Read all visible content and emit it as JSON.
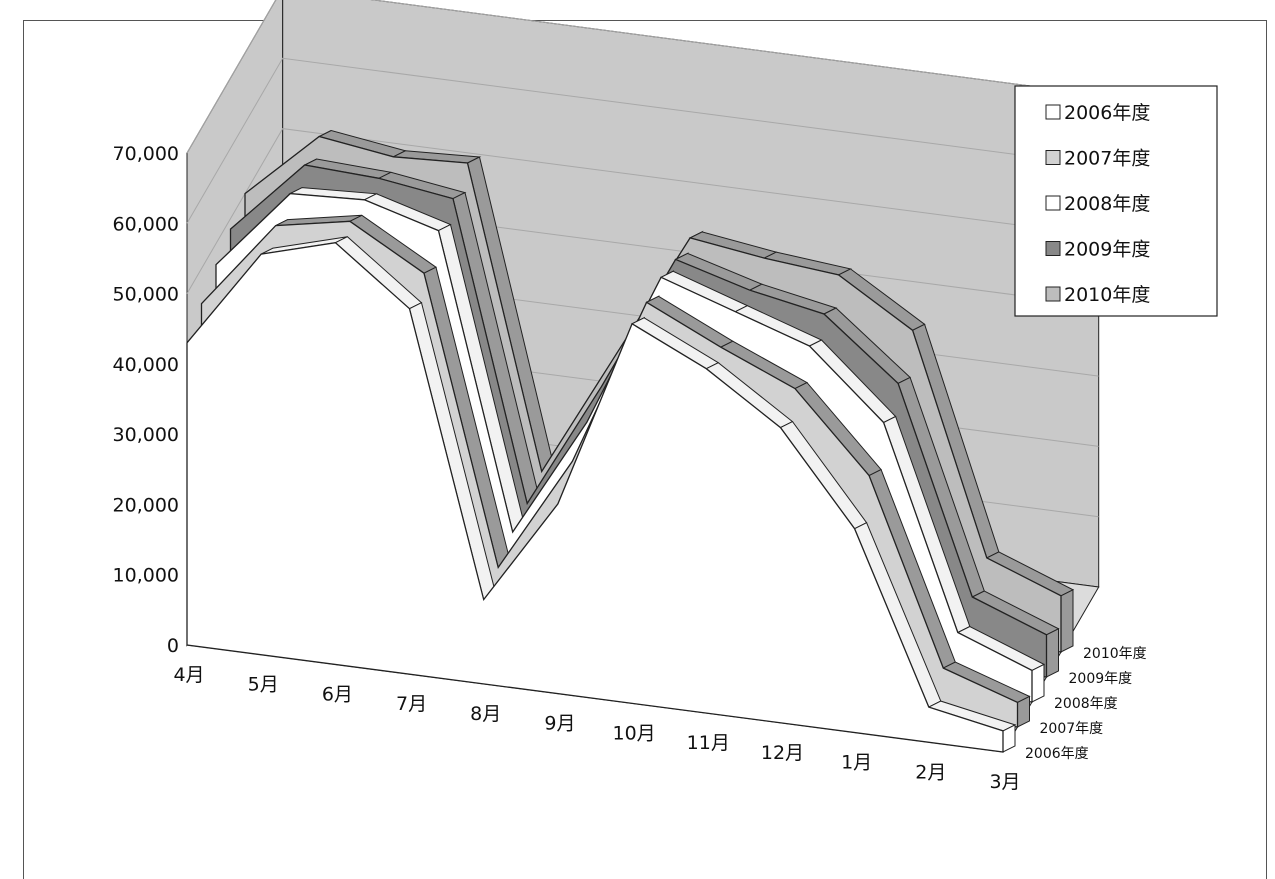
{
  "colors": {
    "wall": "#c9c9c9",
    "grid": "#a8a8a8",
    "outline": "#222222",
    "paper": "#ffffff"
  },
  "chart_data": {
    "type": "area",
    "style": "3d-stacked-depth",
    "categories": [
      "4月",
      "5月",
      "6月",
      "7月",
      "8月",
      "9月",
      "10月",
      "11月",
      "12月",
      "1月",
      "2月",
      "3月"
    ],
    "yticks": [
      "0",
      "10,000",
      "20,000",
      "30,000",
      "40,000",
      "50,000",
      "60,000",
      "70,000"
    ],
    "ylim": [
      0,
      70000
    ],
    "grid": true,
    "legend_position": "top-right",
    "series": [
      {
        "name": "2006年度",
        "color": "#ffffff",
        "values": [
          43000,
          57000,
          60000,
          52000,
          12000,
          27000,
          54000,
          49000,
          42000,
          29000,
          5000,
          3000
        ]
      },
      {
        "name": "2007年度",
        "color": "#d2d2d2",
        "values": [
          45000,
          57500,
          59500,
          53500,
          13000,
          29500,
          53500,
          48500,
          44000,
          33000,
          7000,
          3500
        ]
      },
      {
        "name": "2008年度",
        "color": "#ffffff",
        "values": [
          47000,
          58500,
          59000,
          56000,
          14500,
          31500,
          53500,
          50000,
          46500,
          37000,
          8500,
          4500
        ]
      },
      {
        "name": "2009年度",
        "color": "#888888",
        "values": [
          48500,
          59000,
          58500,
          57000,
          15000,
          33000,
          52500,
          49500,
          47500,
          39000,
          10000,
          6000
        ]
      },
      {
        "name": "2010年度",
        "color": "#bdbdbd",
        "values": [
          50000,
          59500,
          58000,
          58500,
          16000,
          34000,
          52000,
          50500,
          49500,
          43000,
          12000,
          8000
        ]
      }
    ]
  }
}
